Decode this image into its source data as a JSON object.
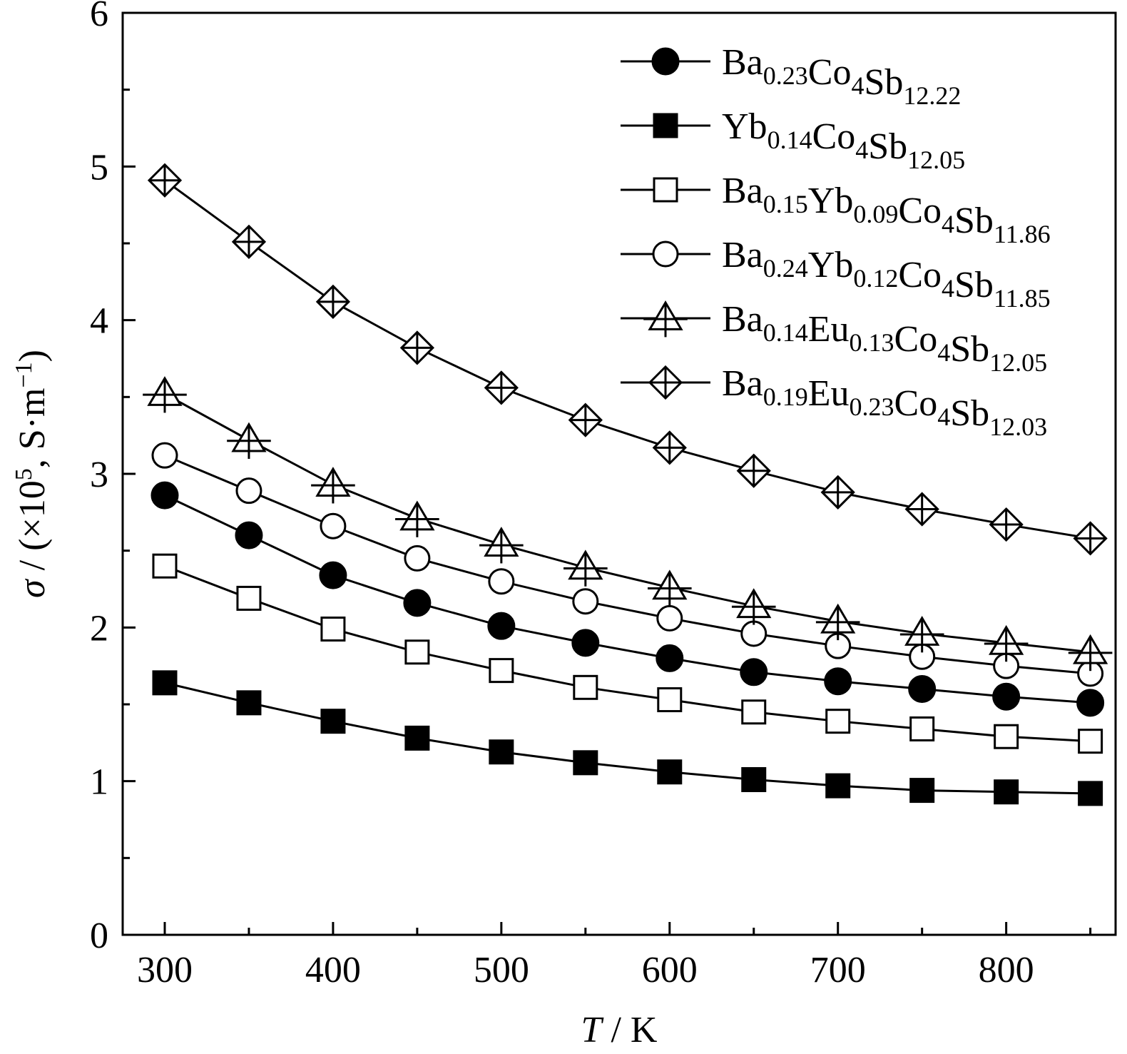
{
  "chart_data": {
    "type": "line",
    "title": "",
    "xlabel": {
      "italic": "T",
      "rest": " / K"
    },
    "ylabel": {
      "italic": "σ",
      "rest_before_sup": " / (×10",
      "sup1": "5",
      "mid": ", S·m",
      "sup2": "−1",
      "end": ")"
    },
    "xlim": [
      275,
      865
    ],
    "ylim": [
      0,
      6
    ],
    "xticks": [
      300,
      400,
      500,
      600,
      700,
      800
    ],
    "xticks_minor": [
      350,
      450,
      550,
      650,
      750,
      850
    ],
    "yticks": [
      0,
      1,
      2,
      3,
      4,
      5,
      6
    ],
    "yticks_minor": [
      0.5,
      1.5,
      2.5,
      3.5,
      4.5,
      5.5
    ],
    "legend_position": "top-right",
    "grid": false,
    "x": [
      300,
      350,
      400,
      450,
      500,
      550,
      600,
      650,
      700,
      750,
      800,
      850
    ],
    "series": [
      {
        "name": "Ba0.23Co4Sb12.22",
        "label_parts": [
          [
            "Ba",
            false
          ],
          [
            "0.23",
            true
          ],
          [
            "Co",
            false
          ],
          [
            "4",
            true
          ],
          [
            "Sb",
            false
          ],
          [
            "12.22",
            true
          ]
        ],
        "marker": "filled-circle",
        "values": [
          2.86,
          2.6,
          2.34,
          2.16,
          2.01,
          1.9,
          1.8,
          1.71,
          1.65,
          1.6,
          1.55,
          1.51
        ]
      },
      {
        "name": "Yb0.14Co4Sb12.05",
        "label_parts": [
          [
            "Yb",
            false
          ],
          [
            "0.14",
            true
          ],
          [
            "Co",
            false
          ],
          [
            "4",
            true
          ],
          [
            "Sb",
            false
          ],
          [
            "12.05",
            true
          ]
        ],
        "marker": "filled-square",
        "values": [
          1.64,
          1.51,
          1.39,
          1.28,
          1.19,
          1.12,
          1.06,
          1.01,
          0.97,
          0.94,
          0.93,
          0.92
        ]
      },
      {
        "name": "Ba0.15Yb0.09Co4Sb11.86",
        "label_parts": [
          [
            "Ba",
            false
          ],
          [
            "0.15",
            true
          ],
          [
            "Yb",
            false
          ],
          [
            "0.09",
            true
          ],
          [
            "Co",
            false
          ],
          [
            "4",
            true
          ],
          [
            "Sb",
            false
          ],
          [
            "11.86",
            true
          ]
        ],
        "marker": "open-square",
        "values": [
          2.4,
          2.19,
          1.99,
          1.84,
          1.72,
          1.61,
          1.53,
          1.45,
          1.39,
          1.34,
          1.29,
          1.26
        ]
      },
      {
        "name": "Ba0.24Yb0.12Co4Sb11.85",
        "label_parts": [
          [
            "Ba",
            false
          ],
          [
            "0.24",
            true
          ],
          [
            "Yb",
            false
          ],
          [
            "0.12",
            true
          ],
          [
            "Co",
            false
          ],
          [
            "4",
            true
          ],
          [
            "Sb",
            false
          ],
          [
            "11.85",
            true
          ]
        ],
        "marker": "open-circle",
        "values": [
          3.12,
          2.89,
          2.66,
          2.45,
          2.3,
          2.17,
          2.06,
          1.96,
          1.88,
          1.81,
          1.75,
          1.7
        ]
      },
      {
        "name": "Ba0.14Eu0.13Co4Sb12.05",
        "label_parts": [
          [
            "Ba",
            false
          ],
          [
            "0.14",
            true
          ],
          [
            "Eu",
            false
          ],
          [
            "0.13",
            true
          ],
          [
            "Co",
            false
          ],
          [
            "4",
            true
          ],
          [
            "Sb",
            false
          ],
          [
            "12.05",
            true
          ]
        ],
        "marker": "triangle-cross",
        "values": [
          3.52,
          3.22,
          2.93,
          2.71,
          2.54,
          2.39,
          2.26,
          2.14,
          2.04,
          1.96,
          1.9,
          1.84
        ]
      },
      {
        "name": "Ba0.19Eu0.23Co4Sb12.03",
        "label_parts": [
          [
            "Ba",
            false
          ],
          [
            "0.19",
            true
          ],
          [
            "Eu",
            false
          ],
          [
            "0.23",
            true
          ],
          [
            "Co",
            false
          ],
          [
            "4",
            true
          ],
          [
            "Sb",
            false
          ],
          [
            "12.03",
            true
          ]
        ],
        "marker": "diamond-cross",
        "values": [
          4.91,
          4.51,
          4.12,
          3.82,
          3.56,
          3.35,
          3.17,
          3.02,
          2.88,
          2.77,
          2.67,
          2.58
        ]
      }
    ],
    "colors": {
      "ink": "#000000",
      "background": "#ffffff"
    }
  }
}
